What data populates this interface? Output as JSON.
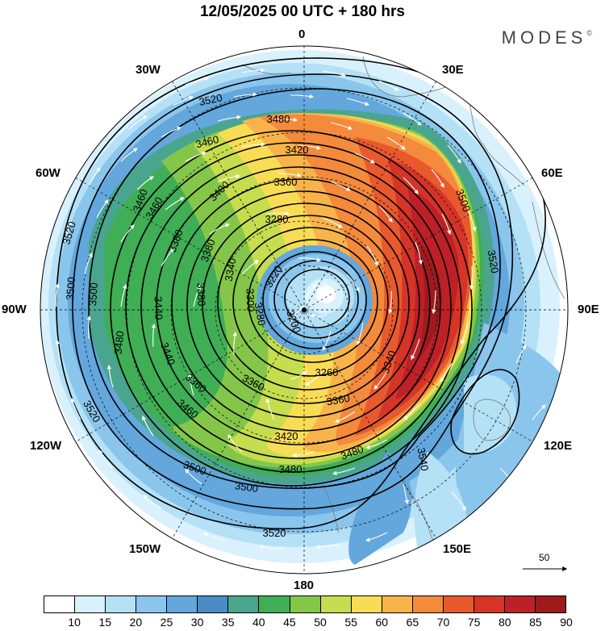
{
  "title": "12/05/2025  00 UTC  + 180 hrs",
  "brand": {
    "name": "MODES",
    "mark": "©"
  },
  "longitude_labels": {
    "top": "0",
    "bottom": "180",
    "left": "90W",
    "right": "90E",
    "upper_left_30": "30W",
    "upper_right_30": "30E",
    "upper_left_60": "60W",
    "upper_right_60": "60E",
    "lower_left_120": "120W",
    "lower_right_120": "120E",
    "lower_left_150": "150W",
    "lower_right_150": "150E"
  },
  "colorbar": {
    "labels": [
      "10",
      "15",
      "20",
      "25",
      "30",
      "35",
      "40",
      "45",
      "50",
      "55",
      "60",
      "65",
      "70",
      "75",
      "80",
      "85",
      "90"
    ],
    "colors": [
      "#ffffff",
      "#d9f1fd",
      "#b5e1f6",
      "#8ac5ec",
      "#63a7dc",
      "#4b8cc6",
      "#4aa58e",
      "#3fae55",
      "#84c64a",
      "#c5dd4e",
      "#f8dc55",
      "#f8b44a",
      "#f38a3c",
      "#e8592e",
      "#d53427",
      "#bd2127",
      "#9e1a1d"
    ]
  },
  "reference_vector": {
    "label": "50"
  },
  "contour_labels": [
    "3520",
    "3480",
    "3460",
    "3420",
    "3360",
    "3280",
    "3220",
    "3200",
    "3260",
    "3360",
    "3420",
    "3480",
    "3500",
    "3520",
    "3500",
    "3520",
    "3460",
    "3400",
    "3380",
    "3340",
    "3300",
    "3280",
    "3500",
    "3480",
    "3440",
    "3380",
    "3440",
    "3520",
    "3360",
    "3500",
    "3500",
    "3520",
    "3460",
    "3460",
    "3480",
    "3380",
    "3540",
    "3360",
    "3340"
  ]
}
